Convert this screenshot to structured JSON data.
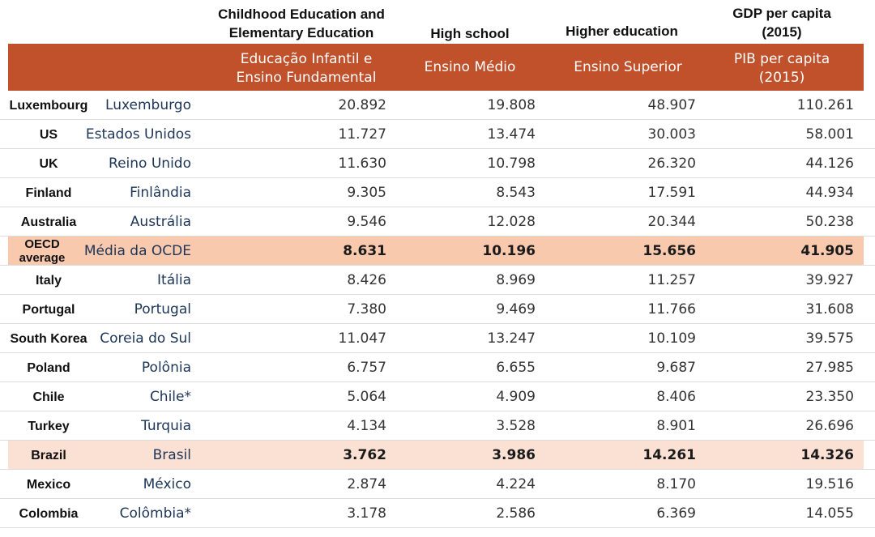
{
  "header_en": {
    "col1": "Childhood Education and Elementary Education",
    "col2": "High school",
    "col3": "Higher education",
    "col4": "GDP per capita (2015)"
  },
  "header_pt": {
    "col1": "Educação Infantil e Ensino Fundamental",
    "col2": "Ensino Médio",
    "col3": "Ensino Superior",
    "col4": "PIB per capita (2015)"
  },
  "colors": {
    "header_bg": "#c0512b",
    "oecd_highlight": "#f9c9ae",
    "brazil_highlight": "#fbe1d3"
  },
  "rows": [
    {
      "en": "Luxembourg",
      "pt": "Luxemburgo",
      "v1": "20.892",
      "v2": "19.808",
      "v3": "48.907",
      "v4": "110.261"
    },
    {
      "en": "US",
      "pt": "Estados Unidos",
      "v1": "11.727",
      "v2": "13.474",
      "v3": "30.003",
      "v4": "58.001"
    },
    {
      "en": "UK",
      "pt": "Reino Unido",
      "v1": "11.630",
      "v2": "10.798",
      "v3": "26.320",
      "v4": "44.126"
    },
    {
      "en": "Finland",
      "pt": "Finlândia",
      "v1": "9.305",
      "v2": "8.543",
      "v3": "17.591",
      "v4": "44.934"
    },
    {
      "en": "Australia",
      "pt": "Austrália",
      "v1": "9.546",
      "v2": "12.028",
      "v3": "20.344",
      "v4": "50.238"
    },
    {
      "en": "OECD average",
      "pt": "Média da OCDE",
      "v1": "8.631",
      "v2": "10.196",
      "v3": "15.656",
      "v4": "41.905"
    },
    {
      "en": "Italy",
      "pt": "Itália",
      "v1": "8.426",
      "v2": "8.969",
      "v3": "11.257",
      "v4": "39.927"
    },
    {
      "en": "Portugal",
      "pt": "Portugal",
      "v1": "7.380",
      "v2": "9.469",
      "v3": "11.766",
      "v4": "31.608"
    },
    {
      "en": "South Korea",
      "pt": "Coreia do Sul",
      "v1": "11.047",
      "v2": "13.247",
      "v3": "10.109",
      "v4": "39.575"
    },
    {
      "en": "Poland",
      "pt": "Polônia",
      "v1": "6.757",
      "v2": "6.655",
      "v3": "9.687",
      "v4": "27.985"
    },
    {
      "en": "Chile",
      "pt": "Chile*",
      "v1": "5.064",
      "v2": "4.909",
      "v3": "8.406",
      "v4": "23.350"
    },
    {
      "en": "Turkey",
      "pt": "Turquia",
      "v1": "4.134",
      "v2": "3.528",
      "v3": "8.901",
      "v4": "26.696"
    },
    {
      "en": "Brazil",
      "pt": "Brasil",
      "v1": "3.762",
      "v2": "3.986",
      "v3": "14.261",
      "v4": "14.326"
    },
    {
      "en": "Mexico",
      "pt": "México",
      "v1": "2.874",
      "v2": "4.224",
      "v3": "8.170",
      "v4": "19.516"
    },
    {
      "en": "Colombia",
      "pt": "Colômbia*",
      "v1": "3.178",
      "v2": "2.586",
      "v3": "6.369",
      "v4": "14.055"
    }
  ]
}
